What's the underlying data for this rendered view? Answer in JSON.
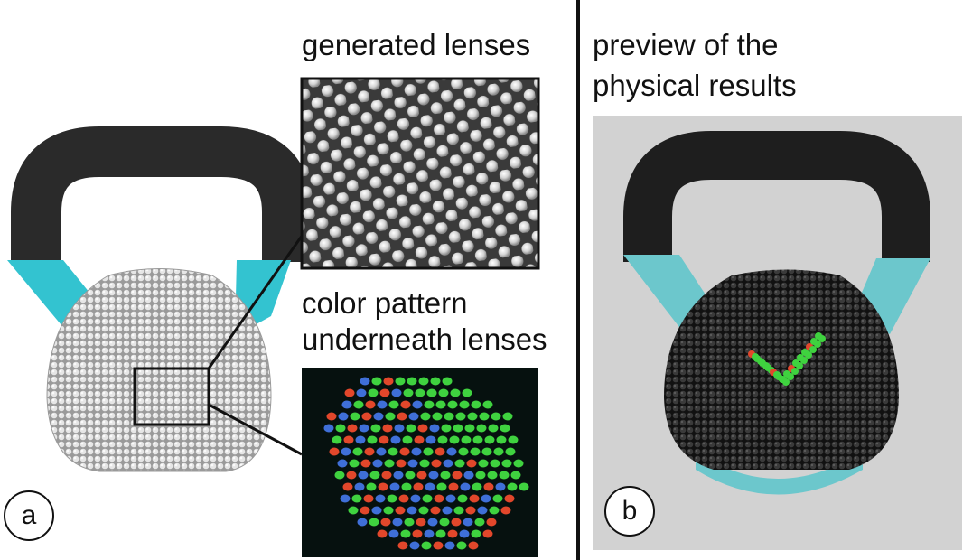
{
  "labels": {
    "generated_lenses": "generated lenses",
    "color_pattern_line1": "color pattern",
    "color_pattern_line2": "underneath lenses",
    "preview_line1": "preview of the",
    "preview_line2": "physical results"
  },
  "markers": {
    "a": "a",
    "b": "b"
  },
  "colors": {
    "handle": "#2a2a2a",
    "handle_cyan": "#33c3d0",
    "lens_body": "#c8c8c8",
    "preview_bg": "#d2d2d2",
    "preview_cyan": "#6cc7cc",
    "preview_body": "#2b2b2b",
    "pattern_red": "#e2472b",
    "pattern_blue": "#3f6fd8",
    "pattern_green": "#3fd23f"
  }
}
